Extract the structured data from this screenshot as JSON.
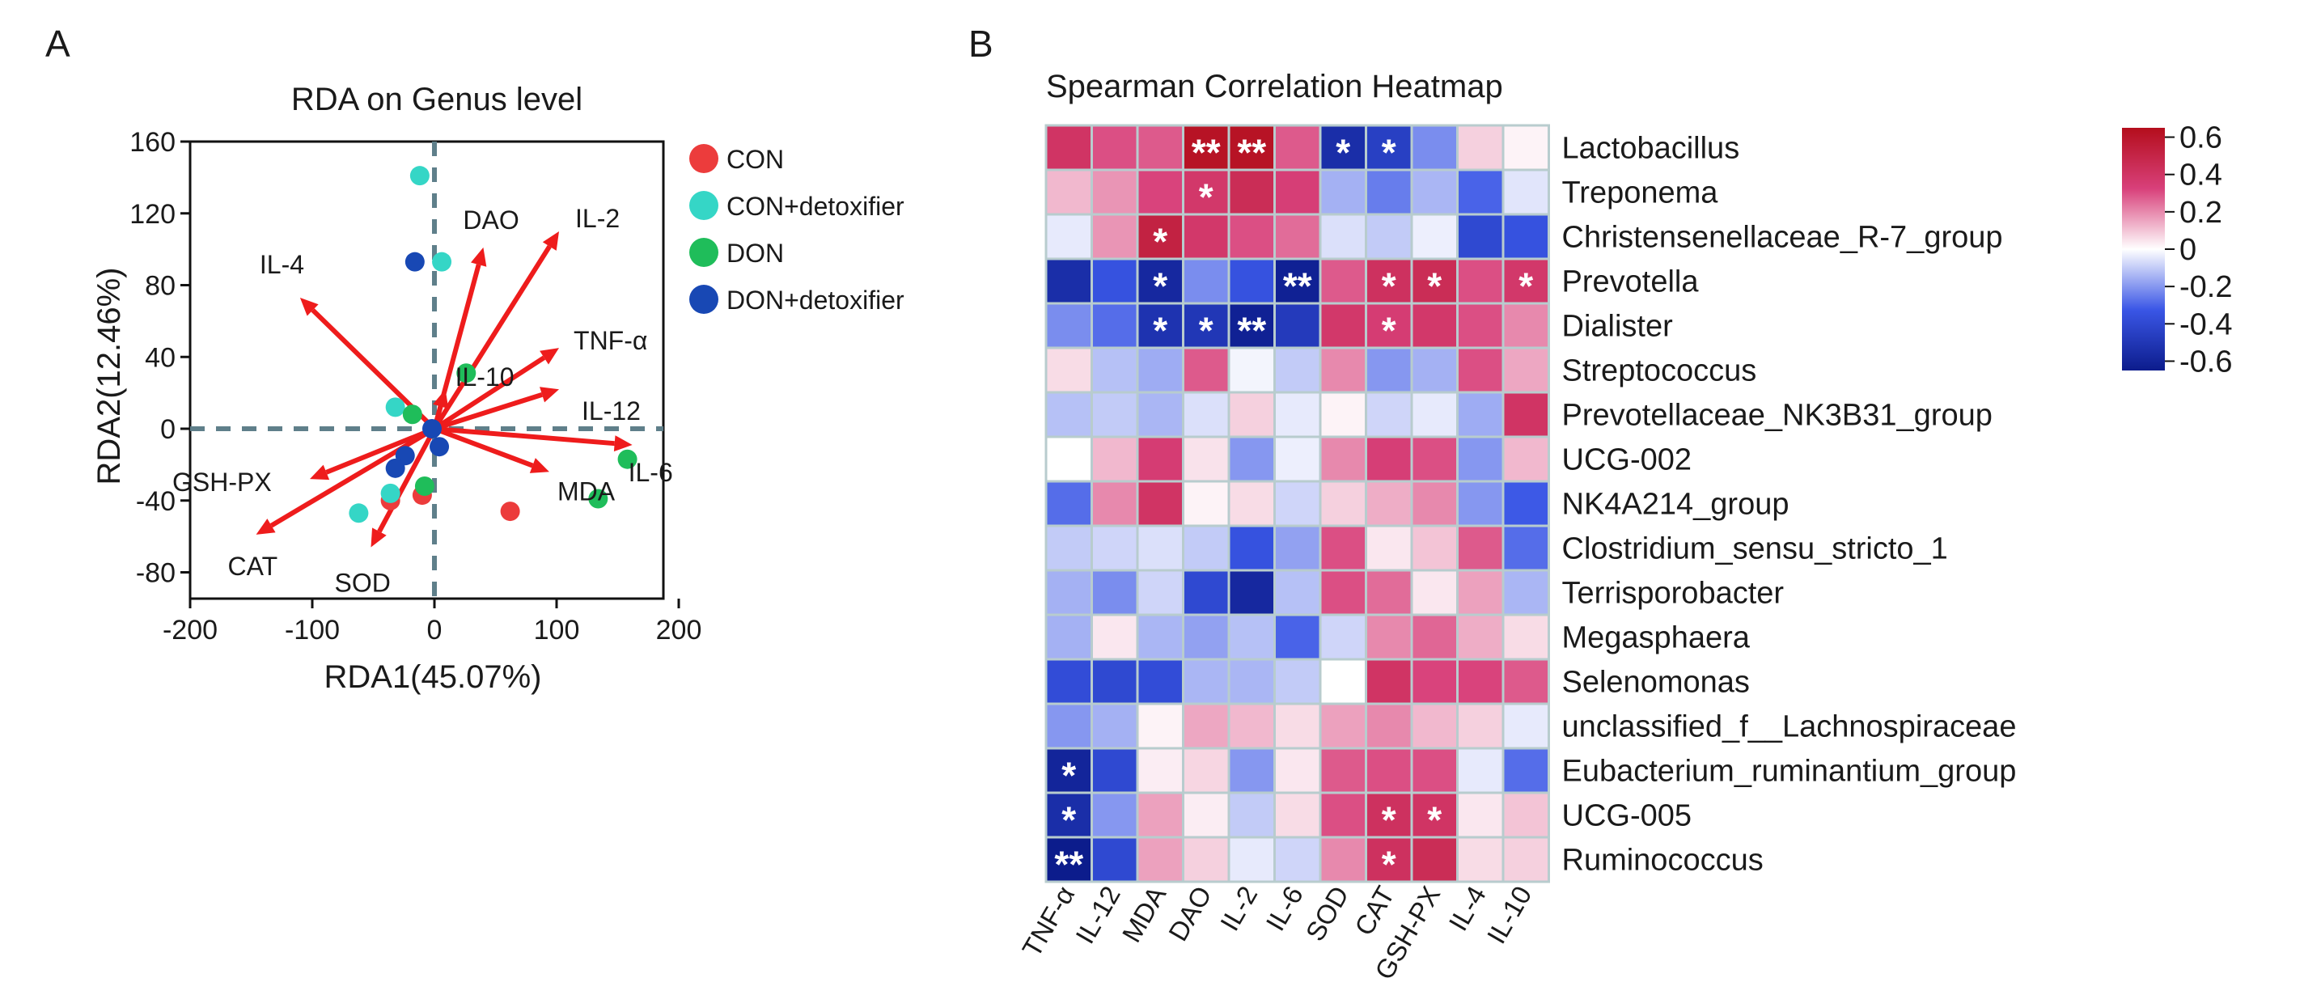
{
  "panels": {
    "a": "A",
    "b": "B"
  },
  "chart_data": [
    {
      "type": "scatter",
      "subtype": "rda-biplot",
      "title": "RDA on Genus level",
      "xlabel": "RDA1(45.07%)",
      "ylabel": "RDA2(12.46%)",
      "xlim": [
        -200,
        200
      ],
      "ylim": [
        -90,
        160
      ],
      "xticks": [
        -200,
        -100,
        0,
        100,
        200
      ],
      "yticks": [
        -80,
        -40,
        0,
        40,
        80,
        120,
        160
      ],
      "legend_position": "right",
      "series": [
        {
          "name": "CON",
          "color": "#ec3c3c",
          "points": [
            [
              -36,
              -40
            ],
            [
              -10,
              -37
            ],
            [
              62,
              -46
            ]
          ]
        },
        {
          "name": "CON+detoxifier",
          "color": "#35d6c6",
          "points": [
            [
              -12,
              141
            ],
            [
              6,
              93
            ],
            [
              -32,
              12
            ],
            [
              -36,
              -36
            ],
            [
              -62,
              -47
            ]
          ]
        },
        {
          "name": "DON",
          "color": "#1fbd5a",
          "points": [
            [
              26,
              31
            ],
            [
              -18,
              8
            ],
            [
              -8,
              -32
            ],
            [
              134,
              -39
            ],
            [
              158,
              -17
            ]
          ]
        },
        {
          "name": "DON+detoxifier",
          "color": "#1848b4",
          "points": [
            [
              -16,
              93
            ],
            [
              -2,
              0
            ],
            [
              4,
              -10
            ],
            [
              -24,
              -15
            ],
            [
              -32,
              -22
            ]
          ]
        }
      ],
      "vectors": [
        {
          "name": "DAO",
          "x": 40,
          "y": 101
        },
        {
          "name": "IL-2",
          "x": 102,
          "y": 110
        },
        {
          "name": "IL-4",
          "x": -110,
          "y": 73
        },
        {
          "name": "TNF-α",
          "x": 102,
          "y": 45
        },
        {
          "name": "IL-10",
          "x": 9,
          "y": 22
        },
        {
          "name": "IL-12",
          "x": 102,
          "y": 22
        },
        {
          "name": "IL-6",
          "x": 162,
          "y": -9
        },
        {
          "name": "MDA",
          "x": 94,
          "y": -24
        },
        {
          "name": "GSH-PX",
          "x": -102,
          "y": -28
        },
        {
          "name": "CAT",
          "x": -146,
          "y": -59
        },
        {
          "name": "SOD",
          "x": -52,
          "y": -66
        }
      ],
      "vector_color": "#ee1c1c"
    },
    {
      "type": "heatmap",
      "title": "Spearman Correlation Heatmap",
      "columns": [
        "TNF-α",
        "IL-12",
        "MDA",
        "DAO",
        "IL-2",
        "IL-6",
        "SOD",
        "CAT",
        "GSH-PX",
        "IL-4",
        "IL-10"
      ],
      "rows": [
        "Lactobacillus",
        "Treponema",
        "Christensenellaceae_R-7_group",
        "Prevotella",
        "Dialister",
        "Streptococcus",
        "Prevotellaceae_NK3B31_group",
        "UCG-002",
        "NK4A214_group",
        "Clostridium_sensu_stricto_1",
        "Terrisporobacter",
        "Megasphaera",
        "Selenomonas",
        "unclassified_f__Lachnospiraceae",
        "Eubacterium_ruminantium_group",
        "UCG-005",
        "Ruminococcus"
      ],
      "values": [
        [
          0.4,
          0.3,
          0.28,
          0.62,
          0.62,
          0.28,
          -0.55,
          -0.45,
          -0.22,
          0.08,
          0.02
        ],
        [
          0.12,
          0.18,
          0.32,
          0.38,
          0.45,
          0.34,
          -0.15,
          -0.25,
          -0.14,
          -0.3,
          -0.05
        ],
        [
          -0.04,
          0.18,
          0.52,
          0.38,
          0.3,
          0.25,
          -0.06,
          -0.1,
          -0.03,
          -0.4,
          -0.35
        ],
        [
          -0.55,
          -0.35,
          -0.58,
          -0.22,
          -0.35,
          -0.62,
          0.28,
          0.42,
          0.45,
          0.3,
          0.38
        ],
        [
          -0.22,
          -0.28,
          -0.52,
          -0.5,
          -0.62,
          -0.48,
          0.38,
          0.35,
          0.38,
          0.3,
          0.2
        ],
        [
          0.06,
          -0.12,
          -0.16,
          0.28,
          -0.02,
          -0.1,
          0.2,
          -0.2,
          -0.15,
          0.3,
          0.15
        ],
        [
          -0.12,
          -0.1,
          -0.14,
          -0.06,
          0.08,
          -0.04,
          0.02,
          -0.08,
          -0.04,
          -0.16,
          0.4
        ],
        [
          0.0,
          0.12,
          0.35,
          0.05,
          -0.2,
          -0.03,
          0.2,
          0.34,
          0.3,
          -0.2,
          0.12
        ],
        [
          -0.28,
          0.2,
          0.4,
          0.02,
          0.06,
          -0.08,
          0.08,
          0.14,
          0.2,
          -0.2,
          -0.32
        ],
        [
          -0.1,
          -0.08,
          -0.06,
          -0.1,
          -0.35,
          -0.18,
          0.3,
          0.04,
          0.1,
          0.28,
          -0.28
        ],
        [
          -0.15,
          -0.22,
          -0.08,
          -0.4,
          -0.58,
          -0.12,
          0.3,
          0.25,
          0.04,
          0.16,
          -0.14
        ],
        [
          -0.15,
          0.04,
          -0.14,
          -0.18,
          -0.12,
          -0.3,
          -0.08,
          0.2,
          0.26,
          0.14,
          0.06
        ],
        [
          -0.38,
          -0.4,
          -0.38,
          -0.14,
          -0.14,
          -0.1,
          0.0,
          0.4,
          0.32,
          0.32,
          0.28
        ],
        [
          -0.2,
          -0.15,
          0.02,
          0.15,
          0.12,
          0.06,
          0.16,
          0.2,
          0.12,
          0.08,
          -0.04
        ],
        [
          -0.6,
          -0.4,
          0.03,
          0.07,
          -0.2,
          0.04,
          0.28,
          0.3,
          0.3,
          -0.04,
          -0.28
        ],
        [
          -0.55,
          -0.2,
          0.16,
          0.03,
          -0.1,
          0.06,
          0.3,
          0.42,
          0.4,
          0.04,
          0.1
        ],
        [
          -0.65,
          -0.4,
          0.16,
          0.08,
          -0.04,
          -0.08,
          0.2,
          0.42,
          0.45,
          0.06,
          0.08
        ]
      ],
      "significance": [
        [
          "",
          "",
          "",
          "**",
          "**",
          "",
          "*",
          "*",
          "",
          "",
          ""
        ],
        [
          "",
          "",
          "",
          "*",
          "",
          "",
          "",
          "",
          "",
          "",
          ""
        ],
        [
          "",
          "",
          "*",
          "",
          "",
          "",
          "",
          "",
          "",
          "",
          ""
        ],
        [
          "",
          "",
          "*",
          "",
          "",
          "**",
          "",
          "*",
          "*",
          "",
          "*"
        ],
        [
          "",
          "",
          "*",
          "*",
          "**",
          "",
          "",
          "*",
          "",
          "",
          ""
        ],
        [
          "",
          "",
          "",
          "",
          "",
          "",
          "",
          "",
          "",
          "",
          ""
        ],
        [
          "",
          "",
          "",
          "",
          "",
          "",
          "",
          "",
          "",
          "",
          ""
        ],
        [
          "",
          "",
          "",
          "",
          "",
          "",
          "",
          "",
          "",
          "",
          ""
        ],
        [
          "",
          "",
          "",
          "",
          "",
          "",
          "",
          "",
          "",
          "",
          ""
        ],
        [
          "",
          "",
          "",
          "",
          "",
          "",
          "",
          "",
          "",
          "",
          ""
        ],
        [
          "",
          "",
          "",
          "",
          "",
          "",
          "",
          "",
          "",
          "",
          ""
        ],
        [
          "",
          "",
          "",
          "",
          "",
          "",
          "",
          "",
          "",
          "",
          ""
        ],
        [
          "",
          "",
          "",
          "",
          "",
          "",
          "",
          "",
          "",
          "",
          ""
        ],
        [
          "",
          "",
          "",
          "",
          "",
          "",
          "",
          "",
          "",
          "",
          ""
        ],
        [
          "*",
          "",
          "",
          "",
          "",
          "",
          "",
          "",
          "",
          "",
          ""
        ],
        [
          "*",
          "",
          "",
          "",
          "",
          "",
          "",
          "*",
          "*",
          "",
          ""
        ],
        [
          "**",
          "",
          "",
          "",
          "",
          "",
          "",
          "*",
          "",
          "",
          ""
        ]
      ],
      "colorbar": {
        "range": [
          -0.65,
          0.65
        ],
        "ticks": [
          0.6,
          0.4,
          0.2,
          0,
          -0.2,
          -0.4,
          -0.6
        ],
        "tick_labels": [
          "0.6",
          "0.4",
          "0.2",
          "0",
          "-0.2",
          "-0.4",
          "-0.6"
        ]
      },
      "colors": {
        "low": "#0c1c8c",
        "mid_low": "#3a56e6",
        "mid": "#ffffff",
        "mid_high": "#d8407a",
        "high": "#b40e1c"
      }
    }
  ]
}
